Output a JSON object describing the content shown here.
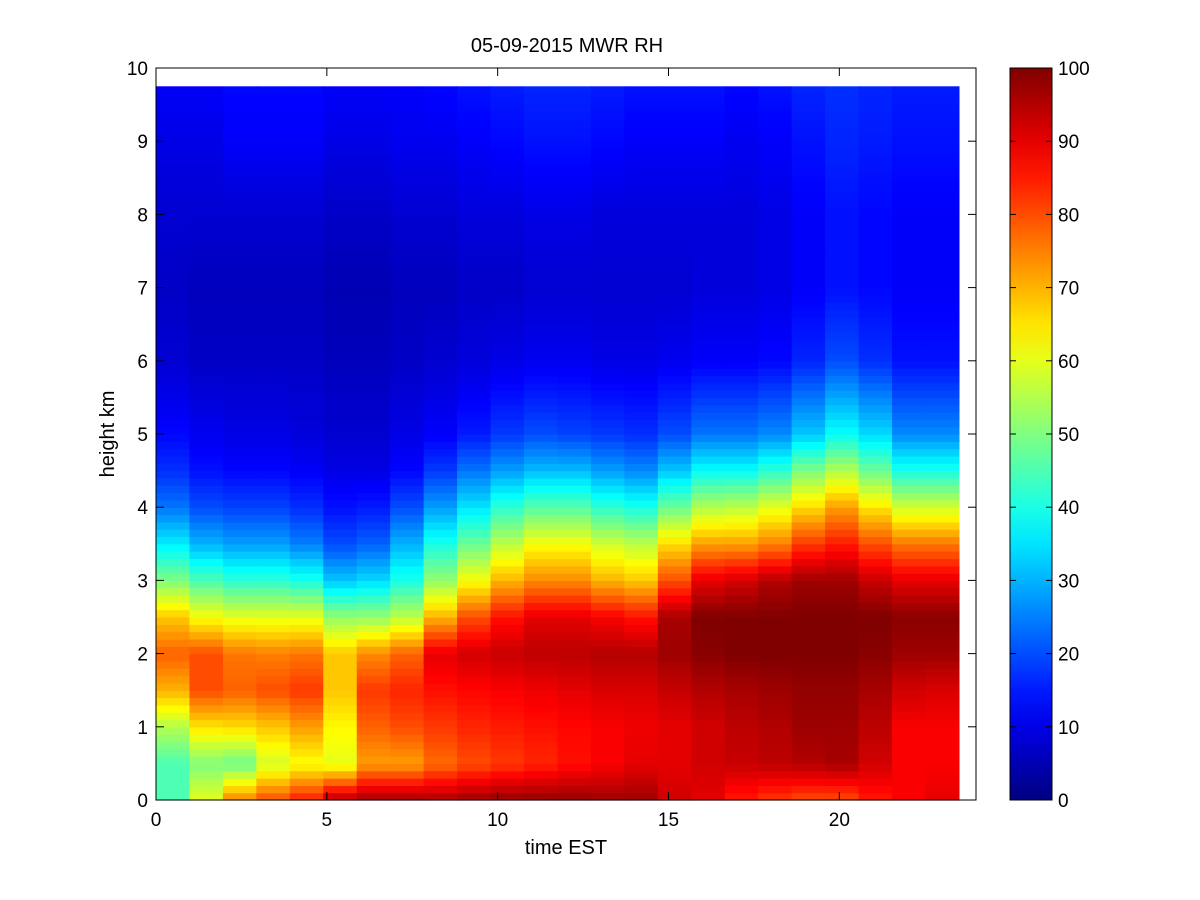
{
  "chart_data": {
    "type": "heatmap",
    "title": "05-09-2015 MWR RH",
    "xlabel": "time EST",
    "ylabel": "height km",
    "xlim": [
      0,
      24
    ],
    "ylim": [
      0,
      10
    ],
    "xticks": [
      "0",
      "5",
      "10",
      "15",
      "20"
    ],
    "yticks": [
      "0",
      "1",
      "2",
      "3",
      "4",
      "5",
      "6",
      "7",
      "8",
      "9",
      "10"
    ],
    "colorbar": {
      "range": [
        0,
        100
      ],
      "ticks": [
        "0",
        "10",
        "20",
        "30",
        "40",
        "50",
        "60",
        "70",
        "80",
        "90",
        "100"
      ],
      "colormap": "jet"
    },
    "grid": false,
    "x": [
      0.5,
      1.5,
      2.5,
      3.5,
      4.5,
      5.5,
      6.5,
      7.5,
      8.5,
      9.5,
      10.5,
      11.5,
      12.5,
      13.5,
      14.5,
      15.5,
      16.5,
      17.5,
      18.5,
      19.5,
      20.5,
      21.5,
      22.5,
      23.5
    ],
    "y": [
      0.0,
      0.5,
      1.0,
      1.5,
      2.0,
      2.5,
      3.0,
      3.5,
      4.0,
      4.5,
      5.0,
      6.0,
      7.0,
      8.0,
      9.0,
      9.75
    ],
    "z": [
      [
        45,
        60,
        75,
        80,
        85,
        95,
        97,
        97,
        96,
        97,
        98,
        98,
        98,
        97,
        97,
        92,
        90,
        85,
        82,
        80,
        80,
        85,
        88,
        90
      ],
      [
        45,
        50,
        48,
        58,
        62,
        60,
        72,
        72,
        77,
        80,
        82,
        84,
        86,
        88,
        90,
        90,
        92,
        93,
        94,
        95,
        96,
        92,
        88,
        88
      ],
      [
        55,
        65,
        66,
        68,
        72,
        63,
        78,
        80,
        82,
        84,
        85,
        86,
        87,
        88,
        89,
        90,
        92,
        94,
        95,
        97,
        97,
        94,
        88,
        88
      ],
      [
        70,
        80,
        78,
        80,
        82,
        68,
        82,
        84,
        86,
        87,
        88,
        89,
        90,
        91,
        91,
        93,
        95,
        96,
        97,
        98,
        98,
        96,
        92,
        91
      ],
      [
        78,
        80,
        76,
        75,
        76,
        68,
        74,
        78,
        90,
        92,
        93,
        94,
        94,
        95,
        95,
        97,
        99,
        100,
        100,
        100,
        100,
        99,
        97,
        97
      ],
      [
        68,
        62,
        60,
        60,
        60,
        52,
        52,
        56,
        70,
        80,
        86,
        90,
        90,
        88,
        86,
        96,
        100,
        100,
        100,
        100,
        100,
        100,
        99,
        99
      ],
      [
        50,
        45,
        42,
        42,
        40,
        32,
        34,
        40,
        52,
        62,
        70,
        74,
        74,
        70,
        68,
        80,
        90,
        92,
        95,
        97,
        97,
        93,
        90,
        90
      ],
      [
        36,
        30,
        28,
        28,
        25,
        20,
        22,
        30,
        40,
        48,
        56,
        62,
        62,
        58,
        56,
        66,
        72,
        72,
        75,
        82,
        85,
        80,
        76,
        76
      ],
      [
        24,
        20,
        19,
        19,
        17,
        14,
        15,
        20,
        28,
        35,
        42,
        46,
        46,
        42,
        40,
        48,
        55,
        56,
        60,
        66,
        72,
        65,
        58,
        58
      ],
      [
        17,
        14,
        13,
        13,
        12,
        10,
        10,
        13,
        18,
        24,
        28,
        31,
        31,
        28,
        26,
        32,
        38,
        38,
        42,
        50,
        55,
        48,
        40,
        40
      ],
      [
        13,
        11,
        10,
        10,
        9,
        8,
        8,
        10,
        12,
        15,
        18,
        20,
        19,
        18,
        17,
        20,
        24,
        24,
        26,
        32,
        38,
        34,
        26,
        26
      ],
      [
        8,
        7,
        7,
        7,
        7,
        6,
        6,
        7,
        8,
        9,
        10,
        11,
        11,
        10,
        10,
        11,
        12,
        12,
        13,
        16,
        20,
        17,
        14,
        14
      ],
      [
        7,
        6,
        6,
        6,
        6,
        5,
        5,
        6,
        6,
        7,
        7,
        8,
        8,
        8,
        8,
        8,
        9,
        9,
        10,
        12,
        14,
        13,
        12,
        12
      ],
      [
        8,
        8,
        8,
        8,
        8,
        7,
        7,
        8,
        8,
        9,
        9,
        10,
        10,
        9,
        9,
        9,
        9,
        9,
        10,
        12,
        14,
        13,
        12,
        12
      ],
      [
        10,
        10,
        12,
        12,
        12,
        10,
        10,
        11,
        11,
        12,
        13,
        14,
        14,
        13,
        12,
        12,
        12,
        11,
        12,
        14,
        16,
        15,
        14,
        14
      ],
      [
        12,
        12,
        13,
        13,
        13,
        12,
        12,
        12,
        13,
        14,
        15,
        16,
        16,
        15,
        14,
        14,
        14,
        13,
        14,
        16,
        17,
        16,
        15,
        15
      ]
    ]
  }
}
